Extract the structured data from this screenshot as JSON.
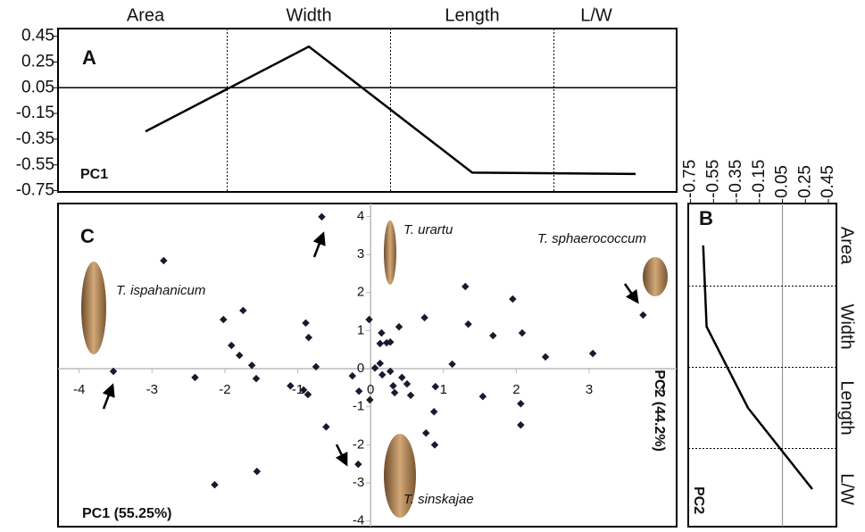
{
  "chart_data": [
    {
      "type": "line",
      "panel_label": "A",
      "label": "PC1",
      "categories": [
        "Area",
        "Width",
        "Length",
        "L/W"
      ],
      "values": [
        -0.29,
        0.37,
        -0.61,
        -0.62
      ],
      "color": "#000000",
      "ylim": [
        -0.76,
        0.51
      ],
      "yticks": [
        0.45,
        0.25,
        0.05,
        -0.15,
        -0.35,
        -0.55,
        -0.75
      ],
      "reference_line": 0.05,
      "category_separators": true
    },
    {
      "type": "scatter",
      "panel_label": "C",
      "xlabel": "PC1 (55.25%)",
      "ylabel": "PC2 (44.2%)",
      "annotations": [
        "T. urartu",
        "T. sphaerococcum",
        "T. ispahanicum",
        "T. sinskajae"
      ],
      "x": [
        -0.67,
        -2.84,
        -3.53,
        -2.02,
        -1.75,
        -1.91,
        -1.8,
        -1.63,
        -1.57,
        -2.41,
        -0.89,
        -0.85,
        -1.1,
        -0.92,
        -0.86,
        -0.75,
        -0.61,
        -0.25,
        -0.16,
        -0.01,
        -0.02,
        0.15,
        0.13,
        0.22,
        0.27,
        0.06,
        0.13,
        0.16,
        0.27,
        0.31,
        0.33,
        0.43,
        0.5,
        0.55,
        0.39,
        0.74,
        0.89,
        0.87,
        0.76,
        0.88,
        1.12,
        1.3,
        1.34,
        1.54,
        1.68,
        1.95,
        2.08,
        2.06,
        2.06,
        2.4,
        3.05,
        3.74,
        -2.14,
        -1.56,
        -0.17
      ],
      "values": [
        3.99,
        2.84,
        -0.07,
        1.29,
        1.53,
        0.61,
        0.35,
        0.09,
        -0.26,
        -0.23,
        1.2,
        0.82,
        -0.45,
        -0.56,
        -0.68,
        0.05,
        -1.53,
        -0.19,
        -0.59,
        -0.82,
        1.29,
        0.94,
        0.66,
        0.68,
        0.7,
        0.02,
        0.14,
        -0.16,
        -0.07,
        -0.45,
        -0.63,
        -0.23,
        -0.4,
        -0.7,
        1.1,
        1.34,
        -0.47,
        -1.13,
        -1.69,
        -2.0,
        0.12,
        2.16,
        1.17,
        -0.73,
        0.87,
        1.83,
        0.94,
        -0.92,
        -1.48,
        0.31,
        0.4,
        1.41,
        -3.05,
        -2.7,
        -2.51
      ],
      "color": "#1a1a2e",
      "xlim": [
        -4.29,
        4.2
      ],
      "ylim": [
        -4.15,
        4.34
      ],
      "xticks": [
        -4,
        -3,
        -2,
        -1,
        0,
        1,
        2,
        3,
        4
      ],
      "yticks": [
        4,
        3,
        2,
        1,
        0,
        -1,
        -2,
        -3,
        -4
      ]
    },
    {
      "type": "line",
      "orientation": "horizontal",
      "panel_label": "B",
      "label": "PC2",
      "categories": [
        "Area",
        "Width",
        "Length",
        "L/W"
      ],
      "values": [
        -0.64,
        -0.61,
        -0.25,
        0.31
      ],
      "color": "#000000",
      "xlim": [
        -0.77,
        0.52
      ],
      "xticks": [
        -0.75,
        -0.55,
        -0.35,
        -0.15,
        0.05,
        0.25,
        0.45
      ],
      "reference_line": 0.05,
      "category_separators": true
    }
  ]
}
